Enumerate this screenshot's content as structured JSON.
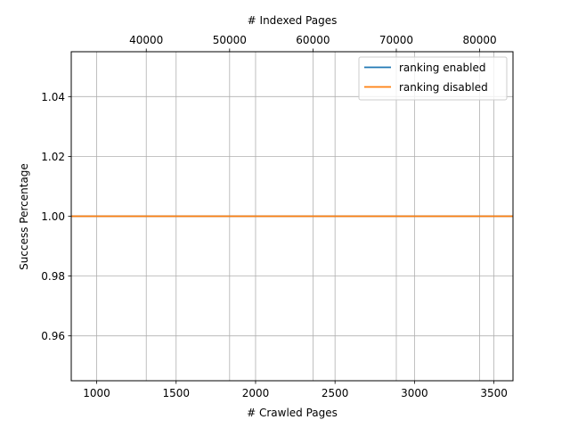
{
  "chart_data": {
    "type": "line",
    "xlabel": "# Crawled Pages",
    "ylabel": "Success Percentage",
    "x2label": "# Indexed Pages",
    "xlim": [
      840,
      3620
    ],
    "ylim": [
      0.945,
      1.055
    ],
    "x2lim": [
      31000,
      84000
    ],
    "xticks": [
      1000,
      1500,
      2000,
      2500,
      3000,
      3500
    ],
    "yticks": [
      0.96,
      0.98,
      1.0,
      1.02,
      1.04
    ],
    "x2ticks": [
      40000,
      50000,
      60000,
      70000,
      80000
    ],
    "xtick_labels": [
      "1000",
      "1500",
      "2000",
      "2500",
      "3000",
      "3500"
    ],
    "ytick_labels": [
      "0.96",
      "0.98",
      "1.00",
      "1.02",
      "1.04"
    ],
    "x2tick_labels": [
      "40000",
      "50000",
      "60000",
      "70000",
      "80000"
    ],
    "grid": true,
    "legend_position": "top-right",
    "series": [
      {
        "name": "ranking enabled",
        "color": "#1f77b4",
        "x": [
          840,
          3620
        ],
        "y": [
          1.0,
          1.0
        ]
      },
      {
        "name": "ranking disabled",
        "color": "#ff7f0e",
        "x": [
          840,
          3620
        ],
        "y": [
          1.0,
          1.0
        ]
      }
    ]
  }
}
